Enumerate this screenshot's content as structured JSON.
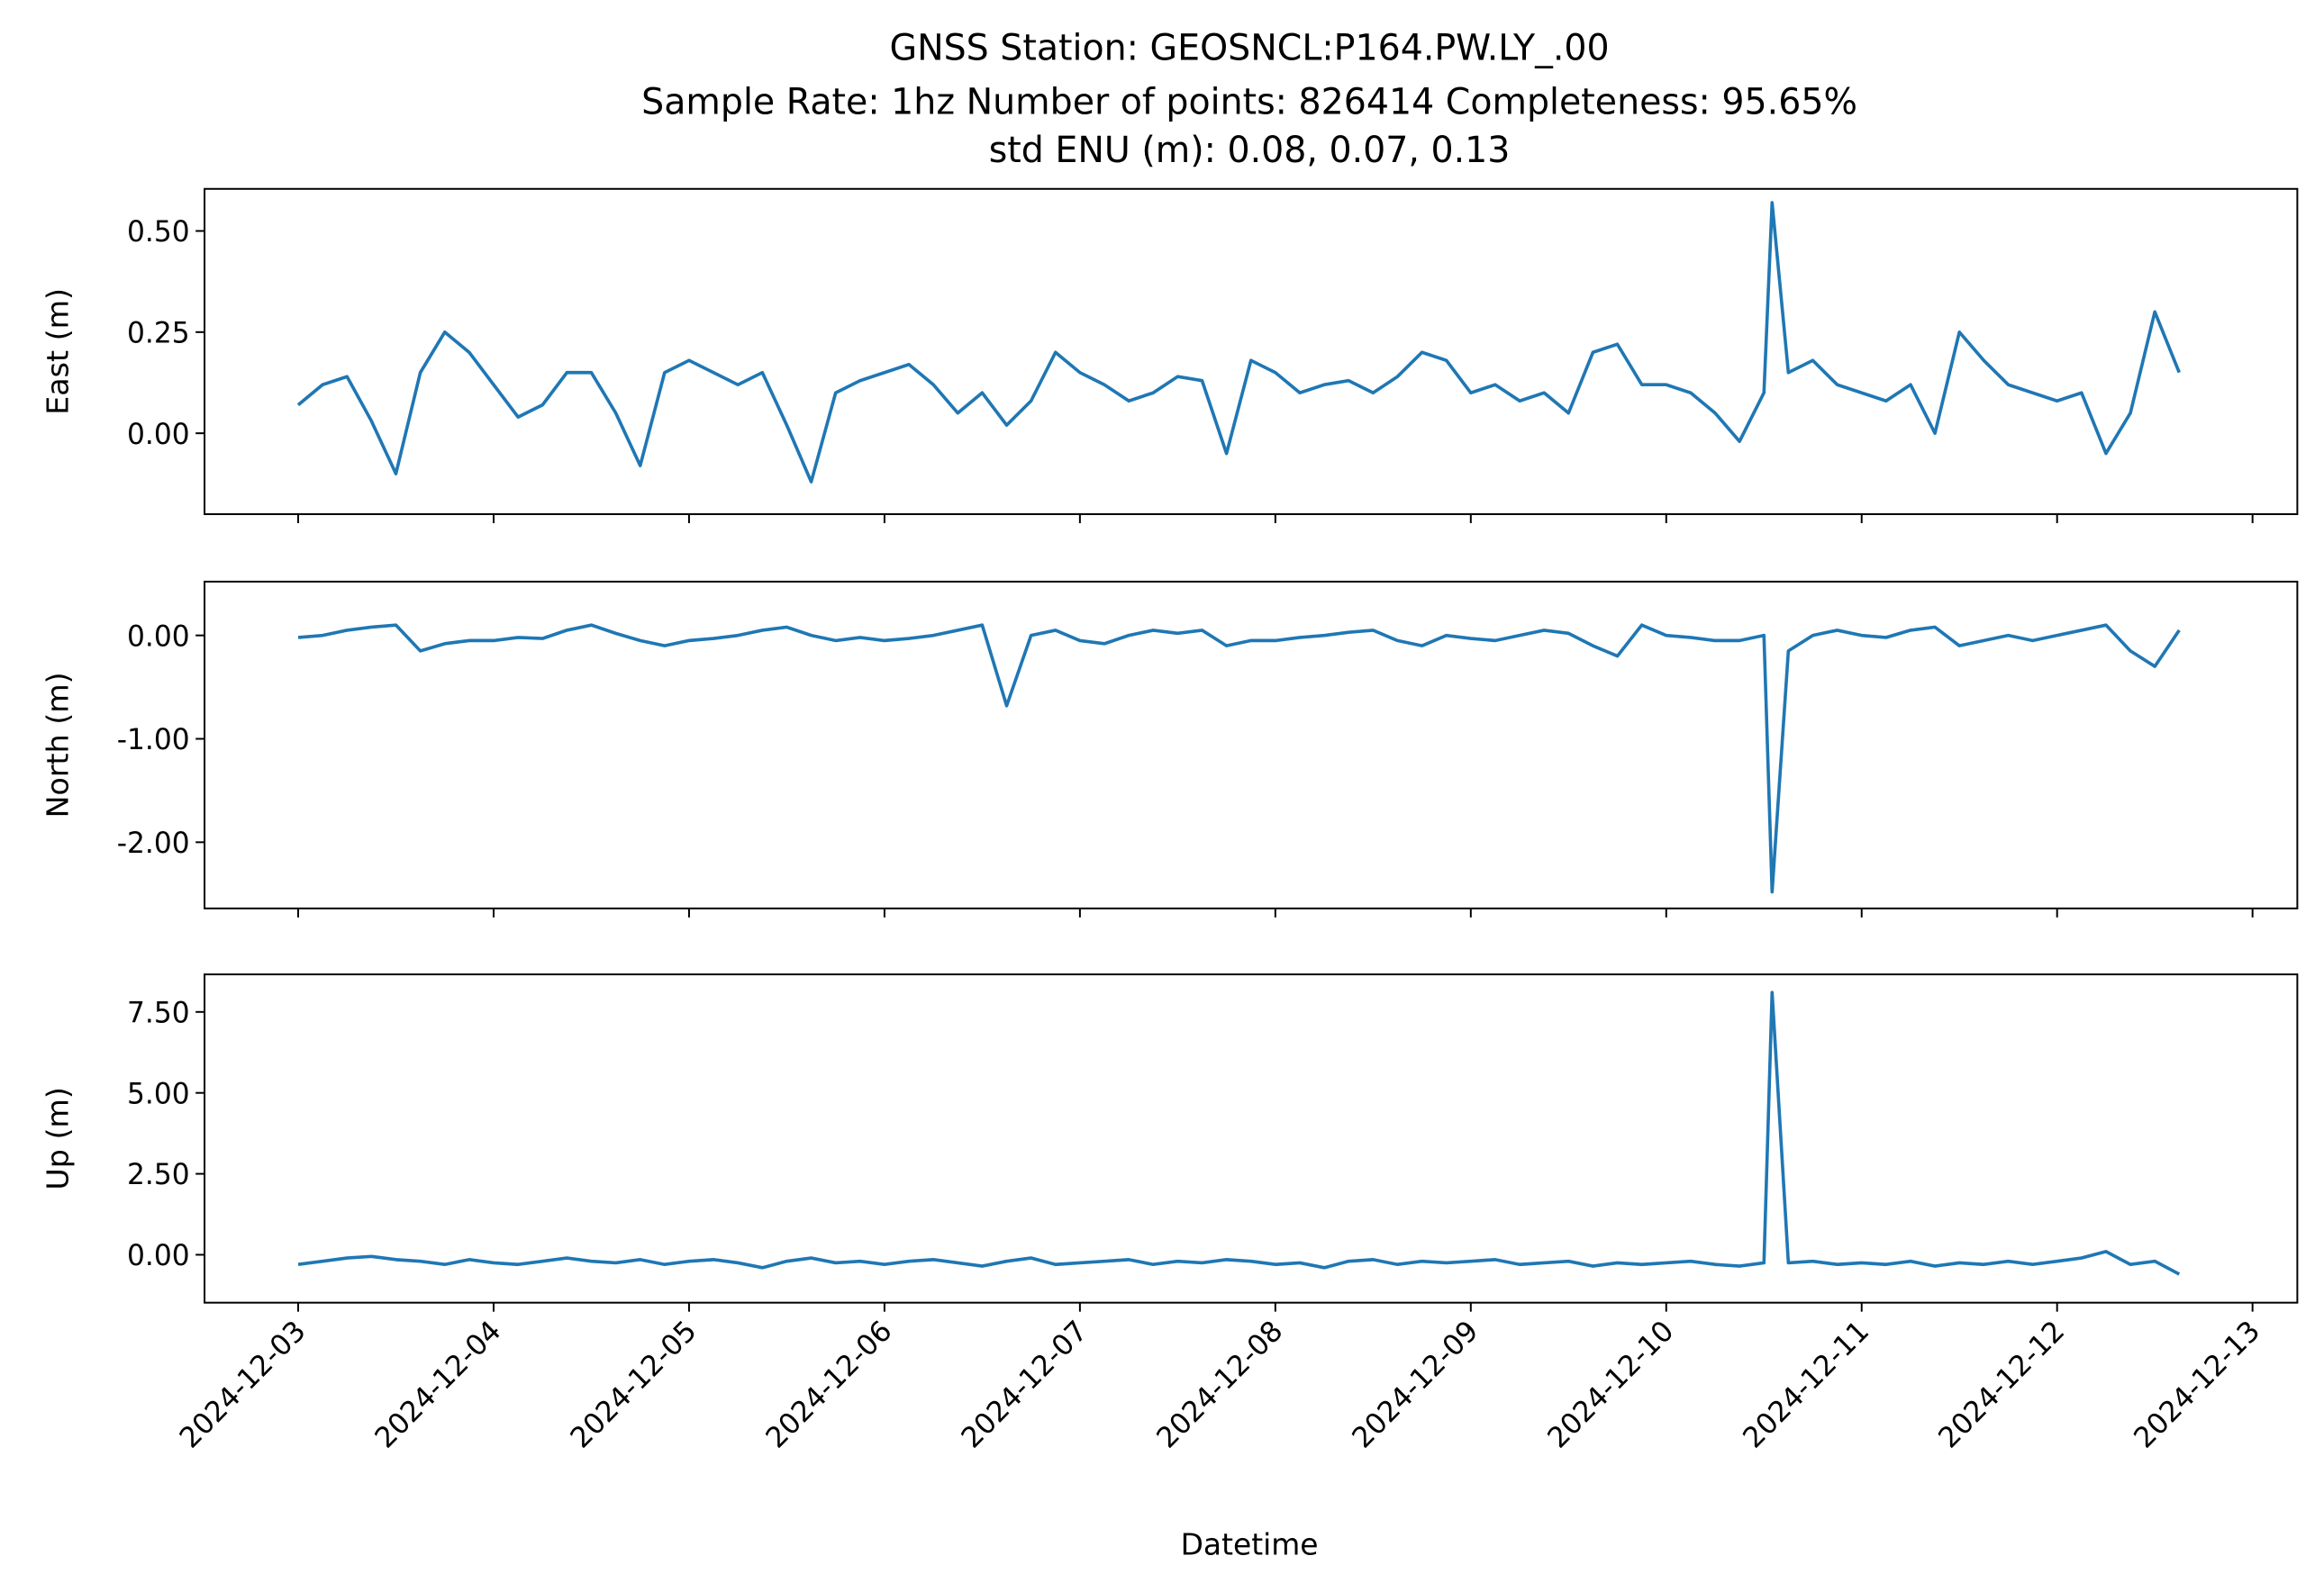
{
  "chart_data": {
    "type": "line",
    "title": [
      "GNSS Station: GEOSNCL:P164.PW.LY_.00",
      "Sample Rate: 1hz   Number of points: 826414    Completeness:  95.65%",
      "std ENU (m):  0.08, 0.07, 0.13"
    ],
    "xlabel": "Datetime",
    "xlim": [
      "2024-12-02T12:30",
      "2024-12-13T05:30"
    ],
    "xticks": [
      "2024-12-03",
      "2024-12-04",
      "2024-12-05",
      "2024-12-06",
      "2024-12-07",
      "2024-12-08",
      "2024-12-09",
      "2024-12-10",
      "2024-12-11",
      "2024-12-12",
      "2024-12-13"
    ],
    "x": [
      "2024-12-03T00:00",
      "2024-12-03T03:00",
      "2024-12-03T06:00",
      "2024-12-03T09:00",
      "2024-12-03T12:00",
      "2024-12-03T15:00",
      "2024-12-03T18:00",
      "2024-12-03T21:00",
      "2024-12-04T00:00",
      "2024-12-04T03:00",
      "2024-12-04T06:00",
      "2024-12-04T09:00",
      "2024-12-04T12:00",
      "2024-12-04T15:00",
      "2024-12-04T18:00",
      "2024-12-04T21:00",
      "2024-12-05T00:00",
      "2024-12-05T03:00",
      "2024-12-05T06:00",
      "2024-12-05T09:00",
      "2024-12-05T12:00",
      "2024-12-05T15:00",
      "2024-12-05T18:00",
      "2024-12-05T21:00",
      "2024-12-06T00:00",
      "2024-12-06T03:00",
      "2024-12-06T06:00",
      "2024-12-06T09:00",
      "2024-12-06T12:00",
      "2024-12-06T15:00",
      "2024-12-06T18:00",
      "2024-12-06T21:00",
      "2024-12-07T00:00",
      "2024-12-07T03:00",
      "2024-12-07T06:00",
      "2024-12-07T09:00",
      "2024-12-07T12:00",
      "2024-12-07T15:00",
      "2024-12-07T18:00",
      "2024-12-07T21:00",
      "2024-12-08T00:00",
      "2024-12-08T03:00",
      "2024-12-08T06:00",
      "2024-12-08T09:00",
      "2024-12-08T12:00",
      "2024-12-08T15:00",
      "2024-12-08T18:00",
      "2024-12-08T21:00",
      "2024-12-09T00:00",
      "2024-12-09T03:00",
      "2024-12-09T06:00",
      "2024-12-09T09:00",
      "2024-12-09T12:00",
      "2024-12-09T15:00",
      "2024-12-09T18:00",
      "2024-12-09T21:00",
      "2024-12-10T00:00",
      "2024-12-10T03:00",
      "2024-12-10T06:00",
      "2024-12-10T09:00",
      "2024-12-10T12:00",
      "2024-12-10T13:00",
      "2024-12-10T15:00",
      "2024-12-10T18:00",
      "2024-12-10T21:00",
      "2024-12-11T00:00",
      "2024-12-11T03:00",
      "2024-12-11T06:00",
      "2024-12-11T09:00",
      "2024-12-11T12:00",
      "2024-12-11T15:00",
      "2024-12-11T18:00",
      "2024-12-11T21:00",
      "2024-12-12T00:00",
      "2024-12-12T03:00",
      "2024-12-12T06:00",
      "2024-12-12T09:00",
      "2024-12-12T12:00",
      "2024-12-12T15:00"
    ],
    "panels": [
      {
        "ylabel": "East (m)",
        "ylim": [
          -0.2,
          0.604
        ],
        "yticks": [
          {
            "value": 0,
            "label": "0.00"
          },
          {
            "value": 0.25,
            "label": "0.25"
          },
          {
            "value": 0.5,
            "label": "0.50"
          }
        ],
        "series": [
          {
            "color": "#1f77b4",
            "values": [
              0.07,
              0.12,
              0.14,
              0.03,
              -0.1,
              0.15,
              0.25,
              0.2,
              0.12,
              0.04,
              0.07,
              0.15,
              0.15,
              0.05,
              -0.08,
              0.15,
              0.18,
              0.15,
              0.12,
              0.15,
              0.02,
              -0.12,
              0.1,
              0.13,
              0.15,
              0.17,
              0.12,
              0.05,
              0.1,
              0.02,
              0.08,
              0.2,
              0.15,
              0.12,
              0.08,
              0.1,
              0.14,
              0.13,
              -0.05,
              0.18,
              0.15,
              0.1,
              0.12,
              0.13,
              0.1,
              0.14,
              0.2,
              0.18,
              0.1,
              0.12,
              0.08,
              0.1,
              0.05,
              0.2,
              0.22,
              0.12,
              0.12,
              0.1,
              0.05,
              -0.02,
              0.1,
              0.57,
              0.15,
              0.18,
              0.12,
              0.1,
              0.08,
              0.12,
              0.0,
              0.25,
              0.18,
              0.12,
              0.1,
              0.08,
              0.1,
              -0.05,
              0.05,
              0.3,
              0.15
            ]
          }
        ]
      },
      {
        "ylabel": "North (m)",
        "ylim": [
          -2.64,
          0.52
        ],
        "yticks": [
          {
            "value": -2,
            "label": "-2.00"
          },
          {
            "value": -1,
            "label": "-1.00"
          },
          {
            "value": 0,
            "label": "0.00"
          }
        ],
        "series": [
          {
            "color": "#1f77b4",
            "values": [
              -0.02,
              0.0,
              0.05,
              0.08,
              0.1,
              -0.15,
              -0.08,
              -0.05,
              -0.05,
              -0.02,
              -0.03,
              0.05,
              0.1,
              0.02,
              -0.05,
              -0.1,
              -0.05,
              -0.03,
              0.0,
              0.05,
              0.08,
              0.0,
              -0.05,
              -0.02,
              -0.05,
              -0.03,
              0.0,
              0.05,
              0.1,
              -0.68,
              0.0,
              0.05,
              -0.05,
              -0.08,
              0.0,
              0.05,
              0.02,
              0.05,
              -0.1,
              -0.05,
              -0.05,
              -0.02,
              0.0,
              0.03,
              0.05,
              -0.05,
              -0.1,
              0.0,
              -0.03,
              -0.05,
              0.0,
              0.05,
              0.02,
              -0.1,
              -0.2,
              0.1,
              0.0,
              -0.02,
              -0.05,
              -0.05,
              0.0,
              -2.48,
              -0.15,
              0.0,
              0.05,
              0.0,
              -0.02,
              0.05,
              0.08,
              -0.1,
              -0.05,
              0.0,
              -0.05,
              0.0,
              0.05,
              0.1,
              -0.15,
              -0.3,
              0.05
            ]
          }
        ]
      },
      {
        "ylabel": "Up (m)",
        "ylim": [
          -1.48,
          8.66
        ],
        "yticks": [
          {
            "value": 0,
            "label": "0.00"
          },
          {
            "value": 2.5,
            "label": "2.50"
          },
          {
            "value": 5,
            "label": "5.00"
          },
          {
            "value": 7.5,
            "label": "7.50"
          }
        ],
        "series": [
          {
            "color": "#1f77b4",
            "values": [
              -0.3,
              -0.2,
              -0.1,
              -0.05,
              -0.15,
              -0.2,
              -0.3,
              -0.15,
              -0.25,
              -0.3,
              -0.2,
              -0.1,
              -0.2,
              -0.25,
              -0.15,
              -0.3,
              -0.2,
              -0.15,
              -0.25,
              -0.4,
              -0.2,
              -0.1,
              -0.25,
              -0.2,
              -0.3,
              -0.2,
              -0.15,
              -0.25,
              -0.35,
              -0.2,
              -0.1,
              -0.3,
              -0.25,
              -0.2,
              -0.15,
              -0.3,
              -0.2,
              -0.25,
              -0.15,
              -0.2,
              -0.3,
              -0.25,
              -0.4,
              -0.2,
              -0.15,
              -0.3,
              -0.2,
              -0.25,
              -0.2,
              -0.15,
              -0.3,
              -0.25,
              -0.2,
              -0.35,
              -0.25,
              -0.3,
              -0.25,
              -0.2,
              -0.3,
              -0.35,
              -0.25,
              8.1,
              -0.25,
              -0.2,
              -0.3,
              -0.25,
              -0.3,
              -0.2,
              -0.35,
              -0.25,
              -0.3,
              -0.2,
              -0.3,
              -0.2,
              -0.1,
              0.1,
              -0.3,
              -0.2,
              -0.6
            ]
          }
        ]
      }
    ]
  }
}
